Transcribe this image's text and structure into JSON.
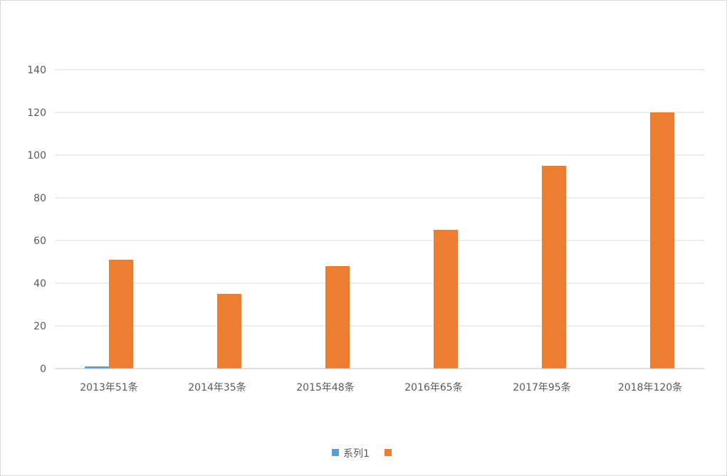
{
  "chart_data": {
    "type": "bar",
    "categories": [
      "2013年51条",
      "2014年35条",
      "2015年48条",
      "2016年65条",
      "2017年95条",
      "2018年120条"
    ],
    "series": [
      {
        "name": "系列1",
        "values": [
          1,
          0,
          0,
          0,
          0,
          0
        ],
        "color": "#5b9bd5"
      },
      {
        "name": "",
        "values": [
          51,
          35,
          48,
          65,
          95,
          120
        ],
        "color": "#ed7d31"
      }
    ],
    "title": "",
    "xlabel": "",
    "ylabel": "",
    "ylim": [
      0,
      140
    ],
    "yticks": [
      0,
      20,
      40,
      60,
      80,
      100,
      120,
      140
    ],
    "grid": true,
    "legend_position": "bottom",
    "gridline_color": "#d9d9d9",
    "axis_color": "#bfbfbf"
  }
}
